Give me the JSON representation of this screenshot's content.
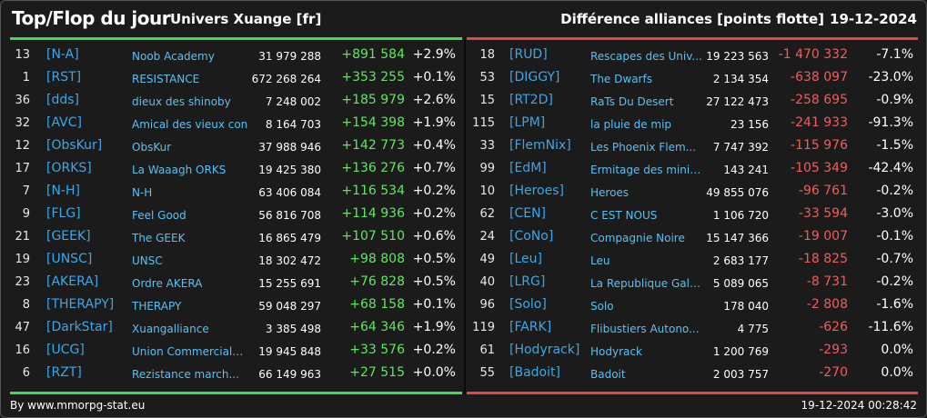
{
  "header": {
    "title": "Top/Flop du jour",
    "universe": "Univers Xuange [fr]",
    "subtitle": "Différence alliances [points flotte]",
    "date": "19-12-2024"
  },
  "top": {
    "rows": [
      {
        "rank": "13",
        "tag": "[N-A]",
        "name": "Noob Academy",
        "points": "31 979 288",
        "diff": "+891 584",
        "pct": "+2.9%"
      },
      {
        "rank": "1",
        "tag": "[RST]",
        "name": "RESISTANCE",
        "points": "672 268 264",
        "diff": "+353 255",
        "pct": "+0.1%"
      },
      {
        "rank": "36",
        "tag": "[dds]",
        "name": "dieux des shinoby",
        "points": "7 248 002",
        "diff": "+185 979",
        "pct": "+2.6%"
      },
      {
        "rank": "32",
        "tag": "[AVC]",
        "name": "Amical des vieux con",
        "points": "8 164 703",
        "diff": "+154 398",
        "pct": "+1.9%"
      },
      {
        "rank": "12",
        "tag": "[ObsKur]",
        "name": "ObsKur",
        "points": "37 988 946",
        "diff": "+142 773",
        "pct": "+0.4%"
      },
      {
        "rank": "17",
        "tag": "[ORKS]",
        "name": "La Waaagh ORKS",
        "points": "19 425 380",
        "diff": "+136 276",
        "pct": "+0.7%"
      },
      {
        "rank": "7",
        "tag": "[N-H]",
        "name": "N-H",
        "points": "63 406 084",
        "diff": "+116 534",
        "pct": "+0.2%"
      },
      {
        "rank": "9",
        "tag": "[FLG]",
        "name": "Feel Good",
        "points": "56 816 708",
        "diff": "+114 936",
        "pct": "+0.2%"
      },
      {
        "rank": "21",
        "tag": "[GEEK]",
        "name": "The GEEK",
        "points": "16 865 479",
        "diff": "+107 510",
        "pct": "+0.6%"
      },
      {
        "rank": "19",
        "tag": "[UNSC]",
        "name": "UNSC",
        "points": "18 302 472",
        "diff": "+98 808",
        "pct": "+0.5%"
      },
      {
        "rank": "23",
        "tag": "[AKERA]",
        "name": "Ordre AKERA",
        "points": "15 255 691",
        "diff": "+76 828",
        "pct": "+0.5%"
      },
      {
        "rank": "8",
        "tag": "[THERAPY]",
        "name": "THERAPY",
        "points": "59 048 297",
        "diff": "+68 158",
        "pct": "+0.1%"
      },
      {
        "rank": "47",
        "tag": "[DarkStar]",
        "name": "Xuangalliance",
        "points": "3 385 498",
        "diff": "+64 346",
        "pct": "+1.9%"
      },
      {
        "rank": "16",
        "tag": "[UCG]",
        "name": "Union Commerciale...",
        "points": "19 945 848",
        "diff": "+33 576",
        "pct": "+0.2%"
      },
      {
        "rank": "6",
        "tag": "[RZT]",
        "name": "Rezistance march...",
        "points": "66 149 963",
        "diff": "+27 515",
        "pct": "+0.0%"
      }
    ]
  },
  "flop": {
    "rows": [
      {
        "rank": "18",
        "tag": "[RUD]",
        "name": "Rescapes des Univ...",
        "points": "19 223 563",
        "diff": "-1 470 332",
        "pct": "-7.1%"
      },
      {
        "rank": "53",
        "tag": "[DIGGY]",
        "name": "The Dwarfs",
        "points": "2 134 354",
        "diff": "-638 097",
        "pct": "-23.0%"
      },
      {
        "rank": "15",
        "tag": "[RT2D]",
        "name": "RaTs Du Desert",
        "points": "27 122 473",
        "diff": "-258 695",
        "pct": "-0.9%"
      },
      {
        "rank": "115",
        "tag": "[LPM]",
        "name": "la pluie de mip",
        "points": "23 156",
        "diff": "-241 933",
        "pct": "-91.3%"
      },
      {
        "rank": "33",
        "tag": "[FlemNix]",
        "name": "Les Phoenix Flem...",
        "points": "7 747 392",
        "diff": "-115 976",
        "pct": "-1.5%"
      },
      {
        "rank": "99",
        "tag": "[EdM]",
        "name": "Ermitage des minier...",
        "points": "143 241",
        "diff": "-105 349",
        "pct": "-42.4%"
      },
      {
        "rank": "10",
        "tag": "[Heroes]",
        "name": "Heroes",
        "points": "49 855 076",
        "diff": "-96 761",
        "pct": "-0.2%"
      },
      {
        "rank": "62",
        "tag": "[CEN]",
        "name": "C EST NOUS",
        "points": "1 106 720",
        "diff": "-33 594",
        "pct": "-3.0%"
      },
      {
        "rank": "24",
        "tag": "[CoNo]",
        "name": "Compagnie Noire",
        "points": "15 147 366",
        "diff": "-19 007",
        "pct": "-0.1%"
      },
      {
        "rank": "49",
        "tag": "[Leu]",
        "name": "Leu",
        "points": "2 683 177",
        "diff": "-18 825",
        "pct": "-0.7%"
      },
      {
        "rank": "40",
        "tag": "[LRG]",
        "name": "La Republique Gala...",
        "points": "5 089 065",
        "diff": "-8 731",
        "pct": "-0.2%"
      },
      {
        "rank": "96",
        "tag": "[Solo]",
        "name": "Solo",
        "points": "178 040",
        "diff": "-2 808",
        "pct": "-1.6%"
      },
      {
        "rank": "119",
        "tag": "[FARK]",
        "name": "Flibustiers Autono...",
        "points": "4 775",
        "diff": "-626",
        "pct": "-11.6%"
      },
      {
        "rank": "61",
        "tag": "[Hodyrack]",
        "name": "Hodyrack",
        "points": "1 200 769",
        "diff": "-293",
        "pct": "0.0%"
      },
      {
        "rank": "55",
        "tag": "[Badoit]",
        "name": "Badoit",
        "points": "2 003 757",
        "diff": "-270",
        "pct": "0.0%"
      }
    ]
  },
  "footer": {
    "credit": "By www.mmorpg-stat.eu",
    "timestamp": "19-12-2024 00:28:42"
  },
  "colors": {
    "gain": "#5fe85f",
    "loss": "#f25c5c",
    "tag": "#3aa8ea",
    "name": "#5cc0f2",
    "top_bar": "#3ddc52",
    "flop_bar": "#e24848"
  }
}
